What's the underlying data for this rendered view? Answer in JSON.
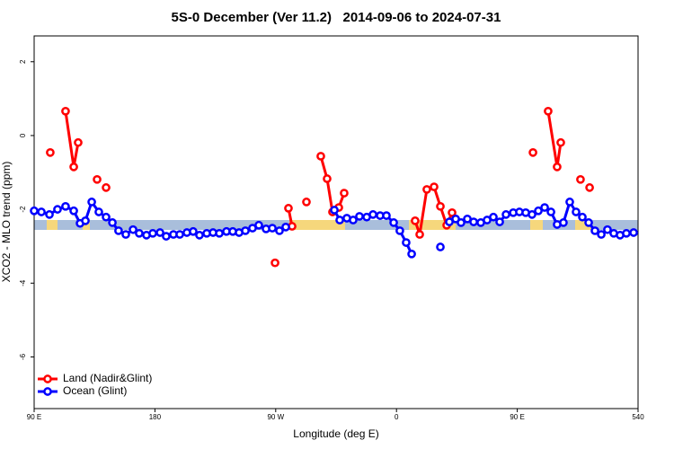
{
  "chart_data": {
    "type": "line",
    "title": "5S-0 December (Ver 11.2)   2014-09-06 to 2024-07-31",
    "xlabel": "Longitude (deg E)",
    "ylabel": "XCO2 - MLO trend (ppm)",
    "xlim": [
      90,
      540
    ],
    "ylim": [
      -7.4,
      2.7
    ],
    "xticks": [
      {
        "value": 90,
        "label": "90 E"
      },
      180,
      {
        "value": 270,
        "label": "90 W"
      },
      {
        "value": 360,
        "label": "0"
      },
      {
        "value": 450,
        "label": "90 E"
      },
      540
    ],
    "yticks": [
      2,
      0,
      -2,
      -4,
      -6
    ],
    "legend": "bottom-left",
    "series": [
      {
        "name": "Land (Nadir&Glint)",
        "color": "#ff0000",
        "x": [
          102,
          null,
          113.4,
          119.5,
          122.8,
          null,
          136.9,
          null,
          143.6,
          null,
          269.5,
          null,
          279.5,
          282.2,
          null,
          292.9,
          null,
          303.6,
          308.3,
          312.3,
          317,
          321,
          null,
          373.9,
          377.3,
          382.6,
          388,
          392.7,
          397.4,
          401.4,
          null,
          461.7,
          null,
          473,
          479.7,
          482.4,
          null,
          497.1,
          null,
          503.9
        ],
        "values": [
          -0.46,
          null,
          0.66,
          -0.85,
          -0.19,
          null,
          -1.19,
          null,
          -1.41,
          null,
          -3.45,
          null,
          -1.97,
          -2.46,
          null,
          -1.8,
          null,
          -0.56,
          -1.17,
          -2.07,
          -1.95,
          -1.56,
          null,
          -2.31,
          -2.68,
          -1.46,
          -1.39,
          -1.92,
          -2.43,
          -2.09,
          null,
          -0.46,
          null,
          0.66,
          -0.85,
          -0.19,
          null,
          -1.19,
          null,
          -1.41
        ]
      },
      {
        "name": "Ocean (Glint)",
        "color": "#0000ff",
        "x": [
          90,
          95.4,
          101.4,
          107.4,
          113.4,
          119.5,
          124.2,
          128.2,
          132.9,
          138.2,
          143.6,
          148.3,
          152.9,
          158.3,
          163.7,
          168.3,
          173.7,
          178.4,
          183.8,
          188.4,
          193.8,
          198.5,
          203.8,
          208.5,
          213.2,
          218.6,
          223.3,
          228,
          233.3,
          238,
          242.7,
          247.4,
          252.7,
          257.4,
          262.8,
          267.5,
          272.8,
          277.5,
          null,
          313.7,
          317.7,
          323,
          327.7,
          332.4,
          337.8,
          342.5,
          347.8,
          352.5,
          357.9,
          362.5,
          367.2,
          371.3,
          null,
          392.7,
          null,
          399.4,
          404.1,
          408.1,
          412.8,
          417.5,
          422.8,
          427.5,
          432.2,
          436.9,
          441.6,
          447,
          451.6,
          456.3,
          461,
          465.7,
          470.4,
          475.1,
          479.7,
          484.4,
          489.1,
          493.8,
          498.5,
          503.2,
          507.9,
          512.6,
          517.2,
          521.9,
          526.6,
          531.3,
          536.7
        ],
        "values": [
          -2.04,
          -2.07,
          -2.14,
          -2,
          -1.92,
          -2.04,
          -2.38,
          -2.31,
          -1.8,
          -2.07,
          -2.21,
          -2.36,
          -2.58,
          -2.68,
          -2.55,
          -2.65,
          -2.7,
          -2.65,
          -2.63,
          -2.73,
          -2.68,
          -2.68,
          -2.63,
          -2.6,
          -2.7,
          -2.65,
          -2.63,
          -2.65,
          -2.6,
          -2.6,
          -2.63,
          -2.58,
          -2.51,
          -2.43,
          -2.53,
          -2.51,
          -2.58,
          -2.48,
          null,
          -2.02,
          -2.29,
          -2.24,
          -2.29,
          -2.19,
          -2.21,
          -2.14,
          -2.17,
          -2.17,
          -2.36,
          -2.58,
          -2.9,
          -3.21,
          null,
          -3.02,
          null,
          -2.34,
          -2.26,
          -2.36,
          -2.26,
          -2.34,
          -2.36,
          -2.29,
          -2.21,
          -2.34,
          -2.14,
          -2.09,
          -2.07,
          -2.09,
          -2.14,
          -2.04,
          -1.95,
          -2.07,
          -2.41,
          -2.36,
          -1.8,
          -2.07,
          -2.21,
          -2.36,
          -2.58,
          -2.68,
          -2.55,
          -2.65,
          -2.7,
          -2.65,
          -2.63
        ]
      }
    ]
  }
}
